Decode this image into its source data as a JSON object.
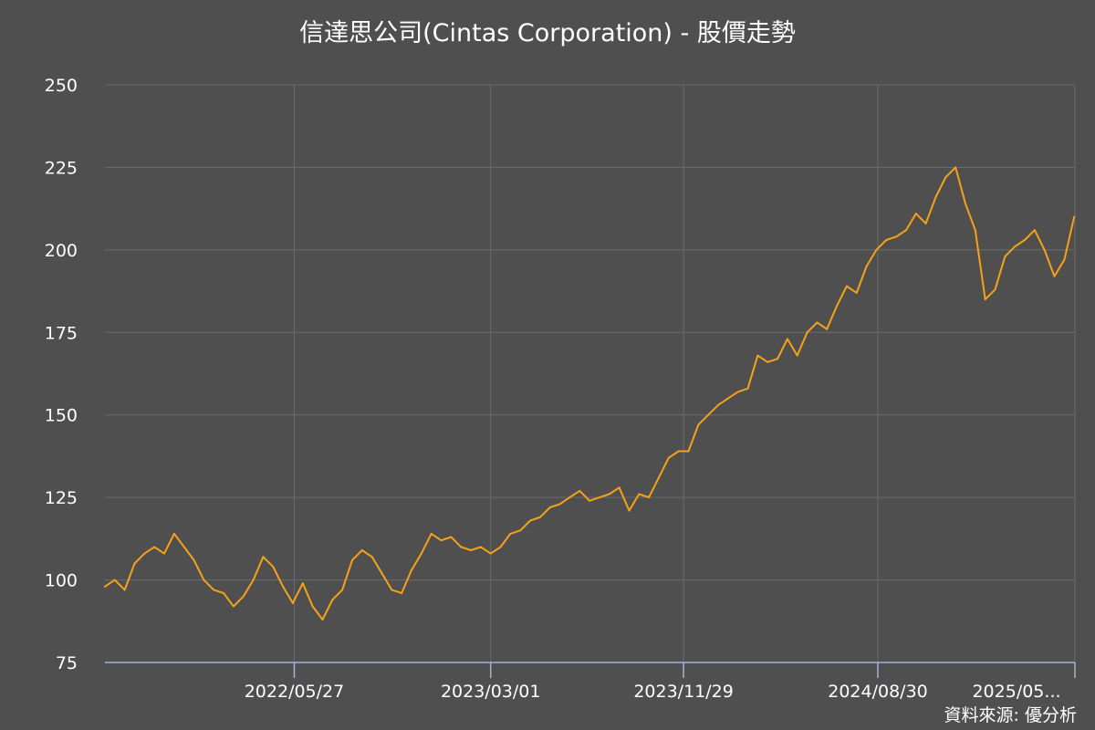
{
  "chart_data": {
    "type": "line",
    "title": "信達思公司(Cintas Corporation) - 股價走勢",
    "xlabel": "",
    "ylabel": "",
    "ylim": [
      75,
      250
    ],
    "yticks": [
      75,
      100,
      125,
      150,
      175,
      200,
      225,
      250
    ],
    "x_tick_labels": [
      "2022/05/27",
      "2023/03/01",
      "2023/11/29",
      "2024/08/30",
      "2025/05..."
    ],
    "x_range": [
      "2021/09/01",
      "2025/06/05"
    ],
    "grid": true,
    "legend": "none",
    "line_color": "#f5a21a",
    "series": [
      {
        "x": [
          "2021/09/01",
          "2021/09/15",
          "2021/09/29",
          "2021/10/13",
          "2021/10/27",
          "2021/11/10",
          "2021/11/24",
          "2021/12/08",
          "2021/12/22",
          "2022/01/05",
          "2022/01/19",
          "2022/02/02",
          "2022/02/16",
          "2022/03/02",
          "2022/03/16",
          "2022/03/30",
          "2022/04/13",
          "2022/04/27",
          "2022/05/11",
          "2022/05/25",
          "2022/06/08",
          "2022/06/22",
          "2022/07/06",
          "2022/07/20",
          "2022/08/03",
          "2022/08/17",
          "2022/08/31",
          "2022/09/14",
          "2022/09/28",
          "2022/10/12",
          "2022/10/26",
          "2022/11/09",
          "2022/11/23",
          "2022/12/07",
          "2022/12/21",
          "2023/01/04",
          "2023/01/18",
          "2023/02/01",
          "2023/02/15",
          "2023/03/01",
          "2023/03/15",
          "2023/03/29",
          "2023/04/12",
          "2023/04/26",
          "2023/05/10",
          "2023/05/24",
          "2023/06/07",
          "2023/06/21",
          "2023/07/05",
          "2023/07/19",
          "2023/08/02",
          "2023/08/16",
          "2023/08/30",
          "2023/09/13",
          "2023/09/27",
          "2023/10/11",
          "2023/10/25",
          "2023/11/08",
          "2023/11/22",
          "2023/12/06",
          "2023/12/20",
          "2024/01/03",
          "2024/01/17",
          "2024/01/31",
          "2024/02/14",
          "2024/02/28",
          "2024/03/13",
          "2024/03/27",
          "2024/04/10",
          "2024/04/24",
          "2024/05/08",
          "2024/05/22",
          "2024/06/05",
          "2024/06/19",
          "2024/07/03",
          "2024/07/17",
          "2024/07/31",
          "2024/08/14",
          "2024/08/28",
          "2024/09/11",
          "2024/09/25",
          "2024/10/09",
          "2024/10/23",
          "2024/11/06",
          "2024/11/20",
          "2024/12/04",
          "2024/12/18",
          "2025/01/01",
          "2025/01/15",
          "2025/01/29",
          "2025/02/12",
          "2025/02/26",
          "2025/03/12",
          "2025/03/26",
          "2025/04/09",
          "2025/04/23",
          "2025/05/07",
          "2025/05/21",
          "2025/06/04"
        ],
        "values": [
          98,
          100,
          97,
          105,
          108,
          110,
          108,
          114,
          110,
          106,
          100,
          97,
          96,
          92,
          95,
          100,
          107,
          104,
          98,
          93,
          99,
          92,
          88,
          94,
          97,
          106,
          109,
          107,
          102,
          97,
          96,
          103,
          108,
          114,
          112,
          113,
          110,
          109,
          110,
          108,
          110,
          114,
          115,
          118,
          119,
          122,
          123,
          125,
          127,
          124,
          125,
          126,
          128,
          121,
          126,
          125,
          131,
          137,
          139,
          139,
          147,
          150,
          153,
          155,
          157,
          158,
          168,
          166,
          167,
          173,
          168,
          175,
          178,
          176,
          183,
          189,
          187,
          195,
          200,
          203,
          204,
          206,
          211,
          208,
          216,
          222,
          225,
          214,
          206,
          185,
          188,
          198,
          201,
          203,
          206,
          200,
          192,
          197,
          210
        ]
      }
    ]
  },
  "source_note": "資料來源: 優分析"
}
